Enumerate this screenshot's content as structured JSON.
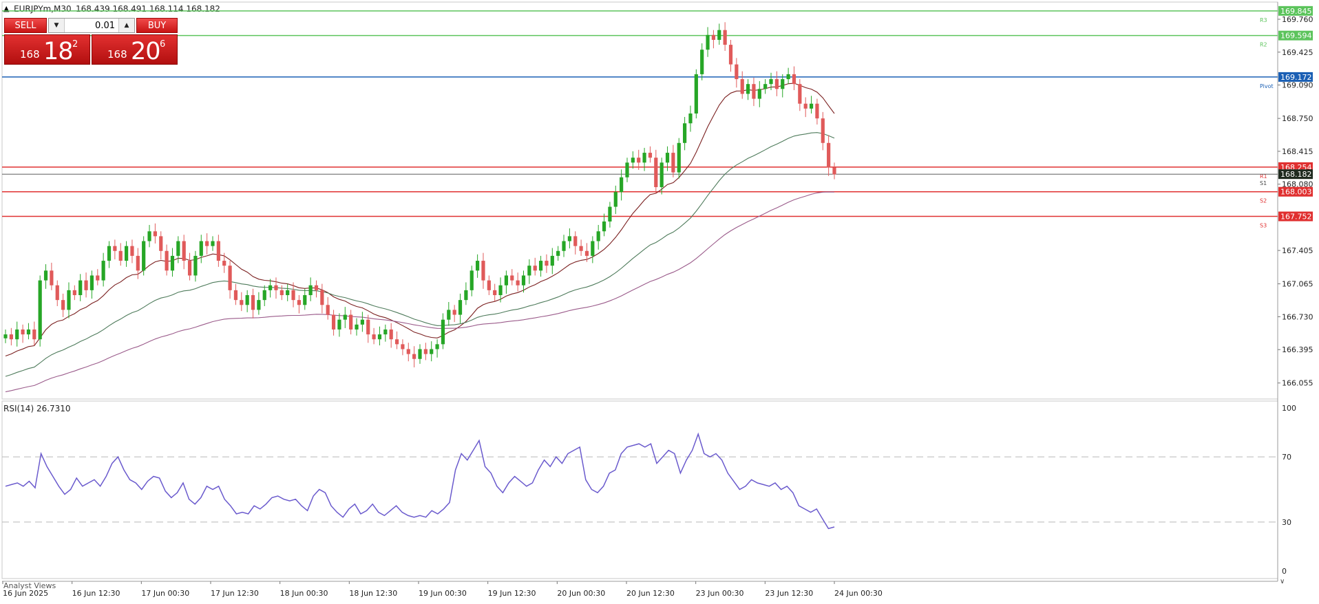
{
  "header": {
    "symbol_label": "EURJPYm,M30",
    "ohlc": "168.439 168.491 168.114 168.182"
  },
  "trade_panel": {
    "sell_label": "SELL",
    "buy_label": "BUY",
    "lot_value": "0.01",
    "sell_quote": {
      "prefix": "168",
      "big": "18",
      "sup": "2"
    },
    "buy_quote": {
      "prefix": "168",
      "big": "20",
      "sup": "6"
    }
  },
  "colors": {
    "bull": "#26a626",
    "bear": "#e05a5a",
    "resistance": "#5cc45c",
    "support": "#e03030",
    "pivot": "#1a5fb4",
    "ma_fast": "#7a1f1f",
    "ma_mid": "#4d7a5a",
    "ma_slow": "#9a5a8a",
    "rsi": "#6a5acd",
    "grid_dash": "#b8b8b8"
  },
  "chart_data": {
    "type": "candlestick",
    "title": "",
    "symbol": "EURJPYm",
    "timeframe": "M30",
    "price_axis": {
      "range": [
        165.92,
        169.9
      ],
      "ticks": [
        "169.760",
        "169.425",
        "169.090",
        "168.750",
        "168.415",
        "168.080",
        "167.405",
        "167.065",
        "166.730",
        "166.395",
        "166.055"
      ]
    },
    "time_axis": {
      "labels": [
        "16 Jun 2025",
        "16 Jun 12:30",
        "17 Jun 00:30",
        "17 Jun 12:30",
        "18 Jun 00:30",
        "18 Jun 12:30",
        "19 Jun 00:30",
        "19 Jun 12:30",
        "20 Jun 00:30",
        "20 Jun 12:30",
        "23 Jun 00:30",
        "23 Jun 12:30",
        "24 Jun 00:30"
      ]
    },
    "closes": [
      166.55,
      166.5,
      166.6,
      166.55,
      166.6,
      166.5,
      167.1,
      167.2,
      167.05,
      166.9,
      166.8,
      167.0,
      166.95,
      167.1,
      167.0,
      167.15,
      167.1,
      167.3,
      167.45,
      167.4,
      167.3,
      167.45,
      167.35,
      167.2,
      167.5,
      167.6,
      167.55,
      167.4,
      167.2,
      167.35,
      167.5,
      167.3,
      167.15,
      167.35,
      167.5,
      167.45,
      167.5,
      167.3,
      167.25,
      167.0,
      166.9,
      166.85,
      166.95,
      166.8,
      166.9,
      167.0,
      167.05,
      167.0,
      166.95,
      167.0,
      166.9,
      166.85,
      166.95,
      167.05,
      167.0,
      166.85,
      166.75,
      166.6,
      166.7,
      166.75,
      166.6,
      166.65,
      166.7,
      166.55,
      166.5,
      166.55,
      166.6,
      166.5,
      166.45,
      166.4,
      166.35,
      166.3,
      166.4,
      166.35,
      166.4,
      166.45,
      166.7,
      166.8,
      166.75,
      166.9,
      167.0,
      167.2,
      167.3,
      167.1,
      167.0,
      166.95,
      167.05,
      167.15,
      167.1,
      167.05,
      167.15,
      167.25,
      167.2,
      167.3,
      167.25,
      167.35,
      167.4,
      167.5,
      167.55,
      167.45,
      167.4,
      167.35,
      167.5,
      167.6,
      167.7,
      167.85,
      168.0,
      168.15,
      168.3,
      168.35,
      168.3,
      168.4,
      168.35,
      168.05,
      168.3,
      168.4,
      168.2,
      168.5,
      168.7,
      168.8,
      169.2,
      169.45,
      169.6,
      169.55,
      169.65,
      169.5,
      169.3,
      169.15,
      169.0,
      169.1,
      168.95,
      169.05,
      169.1,
      169.15,
      169.05,
      169.15,
      169.2,
      169.1,
      168.9,
      168.85,
      168.9,
      168.75,
      168.5,
      168.25,
      168.18
    ],
    "moving_averages": [
      {
        "name": "",
        "start_price": 166.3,
        "end_price": 168.8
      },
      {
        "name": "",
        "start_price": 166.1,
        "end_price": 168.55
      },
      {
        "name": "",
        "start_price": 165.95,
        "end_price": 168.0
      }
    ],
    "levels": [
      {
        "label": "R3",
        "price_label": "169.845",
        "price": 169.845,
        "kind": "resistance"
      },
      {
        "label": "R2",
        "price_label": "169.594",
        "price": 169.594,
        "kind": "resistance"
      },
      {
        "label": "Pivot",
        "price_label": "169.172",
        "price": 169.172,
        "kind": "pivot"
      },
      {
        "label": "R1",
        "price_label": "168.254",
        "price": 168.254,
        "kind": "support"
      },
      {
        "label": "S1",
        "price_label": "168.182",
        "price": 168.182,
        "kind": "current"
      },
      {
        "label": "S2",
        "price_label": "168.003",
        "price": 168.003,
        "kind": "support"
      },
      {
        "label": "S3",
        "price_label": "167.752",
        "price": 167.752,
        "kind": "support"
      }
    ],
    "rsi": {
      "label": "RSI(14) 26.7310",
      "range": [
        0,
        100
      ],
      "ticks": [
        "100",
        "70",
        "30",
        "0"
      ],
      "levels": [
        70,
        30
      ],
      "values": [
        52,
        53,
        54,
        52,
        55,
        51,
        72,
        64,
        58,
        52,
        47,
        50,
        57,
        52,
        54,
        56,
        52,
        58,
        66,
        70,
        62,
        56,
        54,
        50,
        55,
        58,
        57,
        49,
        45,
        48,
        54,
        44,
        41,
        45,
        52,
        50,
        52,
        44,
        40,
        35,
        36,
        35,
        40,
        38,
        41,
        45,
        46,
        44,
        43,
        44,
        40,
        37,
        46,
        50,
        48,
        40,
        36,
        33,
        38,
        41,
        35,
        37,
        41,
        36,
        34,
        37,
        40,
        36,
        34,
        33,
        34,
        33,
        37,
        35,
        38,
        42,
        62,
        72,
        68,
        74,
        80,
        64,
        60,
        52,
        48,
        54,
        58,
        55,
        52,
        54,
        62,
        68,
        64,
        70,
        66,
        72,
        74,
        76,
        56,
        50,
        48,
        52,
        60,
        62,
        72,
        76,
        77,
        78,
        76,
        78,
        66,
        70,
        74,
        72,
        60,
        68,
        74,
        84,
        72,
        70,
        72,
        68,
        60,
        55,
        50,
        52,
        56,
        54,
        53,
        52,
        54,
        50,
        52,
        48,
        40,
        38,
        36,
        38,
        32,
        26,
        27
      ]
    },
    "footer_label": "Analyst Views"
  }
}
